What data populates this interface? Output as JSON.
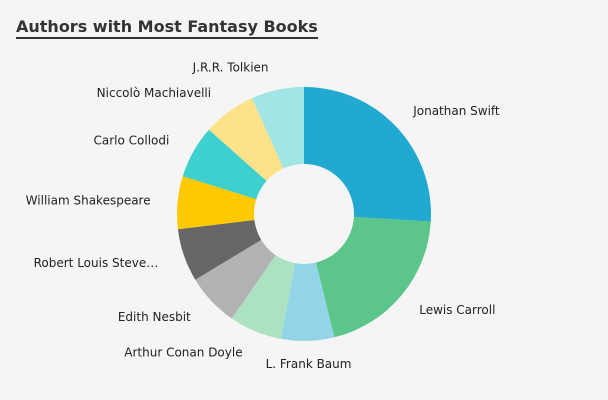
{
  "chart_data": {
    "type": "pie",
    "title": "Authors with Most Fantasy Books",
    "donut": true,
    "categories": [
      "Jonathan Swift",
      "Lewis Carroll",
      "L. Frank Baum",
      "Arthur Conan Doyle",
      "Edith Nesbit",
      "Robert Louis Steve…",
      "William Shakespeare",
      "Carlo Collodi",
      "Niccolò Machiavelli",
      "J.R.R. Tolkien"
    ],
    "values": [
      27,
      21,
      7,
      7,
      7,
      7,
      7,
      7,
      7,
      7
    ],
    "colors": [
      "#21a9cf",
      "#5bc58a",
      "#93d4e6",
      "#ace2c2",
      "#b2b2b2",
      "#666666",
      "#fdc900",
      "#3ecfcf",
      "#fde289",
      "#a2e5e5"
    ],
    "legend": "none"
  }
}
